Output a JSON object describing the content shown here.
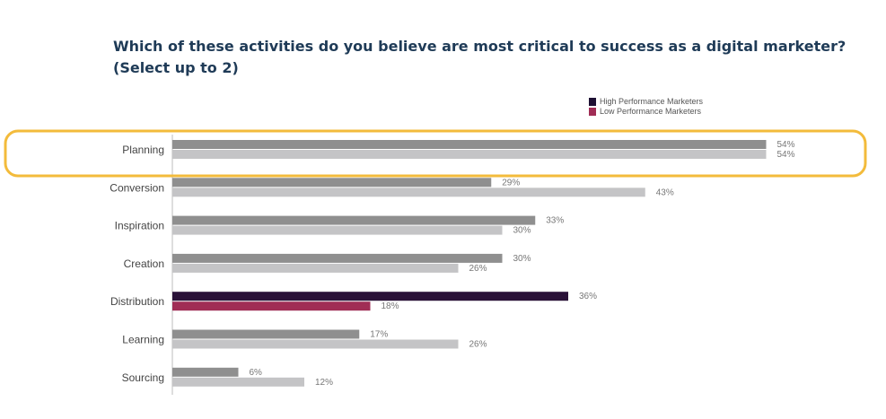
{
  "title": {
    "line1": "Which of these activities do you believe are most critical to success as a digital marketer?",
    "line2": "(Select up to 2)"
  },
  "colors": {
    "title": "#1f3b57",
    "high_default": "#8f8f8f",
    "low_default": "#c4c4c6",
    "high_highlight": "#2a1238",
    "low_highlight": "#a02d55",
    "legend_high": "#1d1033",
    "legend_low": "#a02d55",
    "annotation": "#f3bb3b"
  },
  "chart_data": {
    "type": "bar",
    "orientation": "horizontal",
    "categories": [
      "Planning",
      "Conversion",
      "Inspiration",
      "Creation",
      "Distribution",
      "Learning",
      "Sourcing"
    ],
    "series": [
      {
        "name": "High Performance Marketers",
        "values": [
          54,
          29,
          33,
          30,
          36,
          17,
          6
        ]
      },
      {
        "name": "Low Performance Marketers",
        "values": [
          54,
          43,
          30,
          26,
          18,
          26,
          12
        ]
      }
    ],
    "value_labels": [
      [
        "54%",
        "29%",
        "33%",
        "30%",
        "36%",
        "17%",
        "6%"
      ],
      [
        "54%",
        "43%",
        "30%",
        "26%",
        "18%",
        "26%",
        "12%"
      ]
    ],
    "highlight_category": "Distribution",
    "annotation_circle_category": "Planning",
    "legend_position": "top-right",
    "grid": false
  }
}
